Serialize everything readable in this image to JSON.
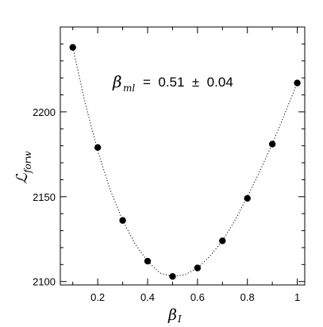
{
  "chart_data": {
    "type": "scatter",
    "title": "",
    "xlabel": "β",
    "xlabel_sub": "I",
    "ylabel": "ℒ",
    "ylabel_sub": "forw",
    "xlim": [
      0.05,
      1.03
    ],
    "ylim": [
      2098,
      2250
    ],
    "xticks": [
      0.2,
      0.4,
      0.6,
      0.8,
      1
    ],
    "xtick_labels": [
      "0.2",
      "0.4",
      "0.6",
      "0.8",
      "1"
    ],
    "yticks": [
      2100,
      2150,
      2200
    ],
    "ytick_labels": [
      "2100",
      "2150",
      "2200"
    ],
    "grid": false,
    "series": [
      {
        "points": [
          {
            "x": 0.1,
            "y": 2238
          },
          {
            "x": 0.2,
            "y": 2179
          },
          {
            "x": 0.3,
            "y": 2136
          },
          {
            "x": 0.4,
            "y": 2112
          },
          {
            "x": 0.5,
            "y": 2103
          },
          {
            "x": 0.6,
            "y": 2108
          },
          {
            "x": 0.7,
            "y": 2124
          },
          {
            "x": 0.8,
            "y": 2149
          },
          {
            "x": 0.9,
            "y": 2181
          },
          {
            "x": 1.0,
            "y": 2217
          }
        ]
      }
    ],
    "fit_curve": {
      "style": "dotted",
      "x": [
        0.1,
        0.15,
        0.2,
        0.25,
        0.3,
        0.35,
        0.4,
        0.45,
        0.5,
        0.55,
        0.6,
        0.65,
        0.7,
        0.75,
        0.8,
        0.85,
        0.9,
        0.95,
        1.0
      ],
      "y": [
        2238,
        2205,
        2177,
        2154,
        2136,
        2122,
        2112,
        2105,
        2103,
        2104,
        2108,
        2115,
        2124,
        2136,
        2150,
        2165,
        2181,
        2199,
        2217
      ]
    },
    "annotation": {
      "symbol": "β",
      "subscript": "ml",
      "text": "=  0.51  ±  0.04"
    }
  }
}
